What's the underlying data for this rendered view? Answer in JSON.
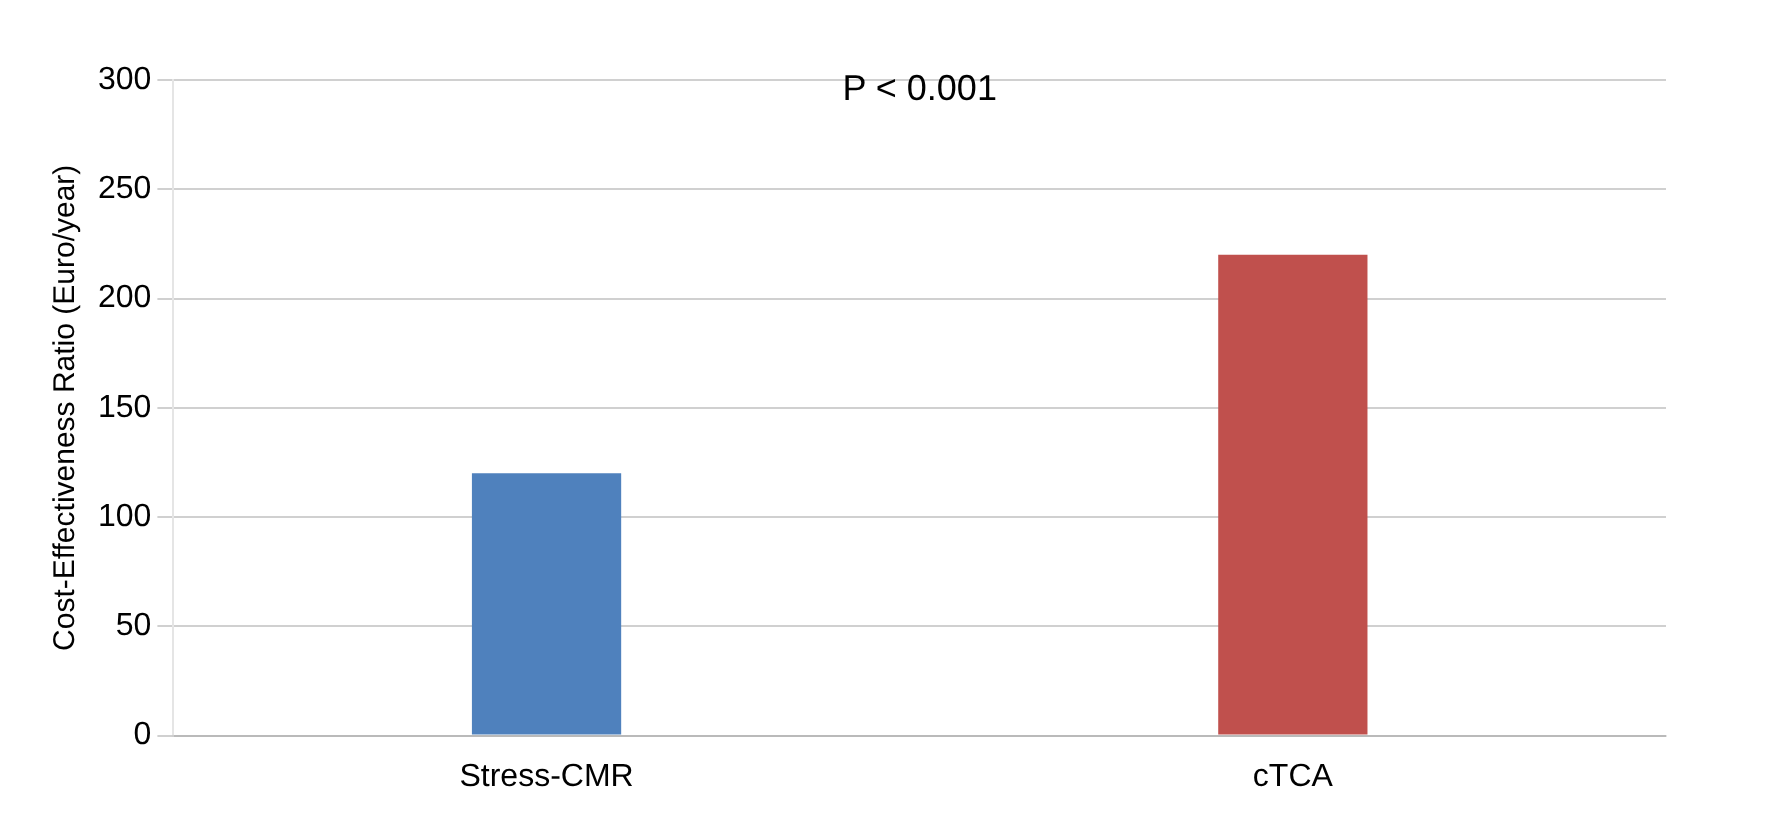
{
  "chart_data": {
    "type": "bar",
    "ylabel": "Cost-Effectiveness Ratio (Euro/year)",
    "categories": [
      "Stress-CMR",
      "cTCA"
    ],
    "values": [
      120,
      220
    ],
    "colors": [
      "#4f81bd",
      "#c0504d"
    ],
    "ylim": [
      0,
      300
    ],
    "yticks": [
      0,
      50,
      100,
      150,
      200,
      250,
      300
    ],
    "grid": "y",
    "annotations": [
      "P < 0.001"
    ]
  }
}
